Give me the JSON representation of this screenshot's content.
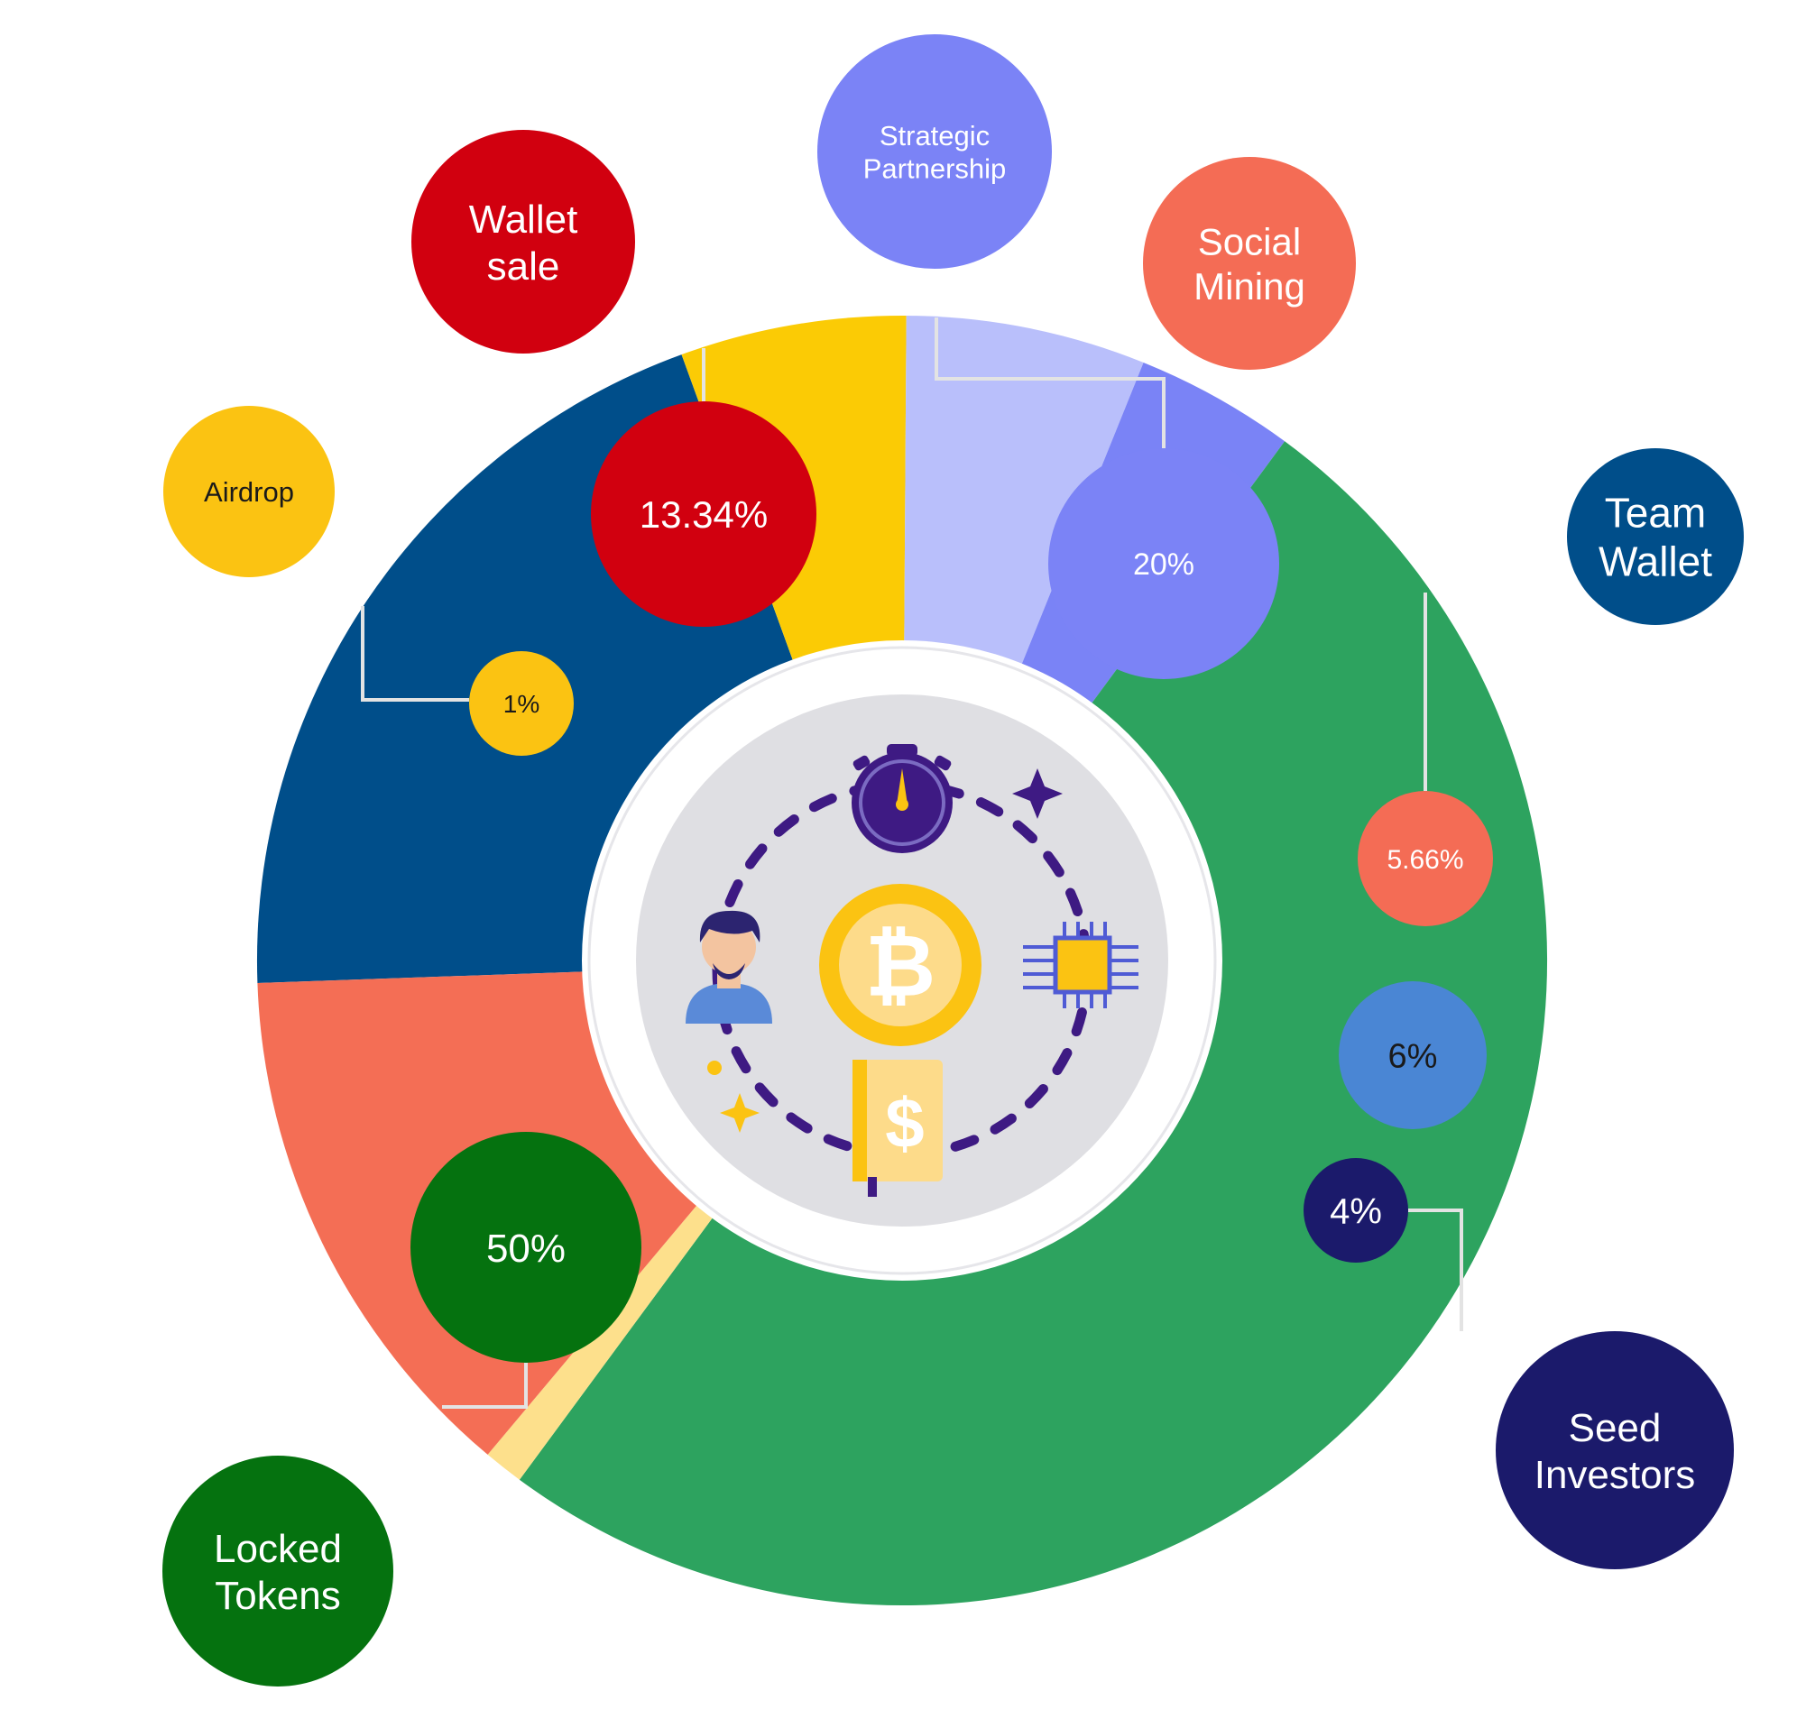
{
  "chart_data": {
    "type": "pie",
    "title": "",
    "unit": "%",
    "slices": [
      {
        "label": "Strategic Partnership",
        "value": 20,
        "value_label": "20%",
        "color": "#004e8a",
        "badge_color": "#7b83f6",
        "label_color": "#7b83f6",
        "label_text": [
          "Strategic",
          "Partnership"
        ]
      },
      {
        "label": "Social Mining",
        "value": 5.66,
        "value_label": "5.66%",
        "color": "#fbcb05",
        "badge_color": "#f46c55",
        "label_color": "#f46c55",
        "label_text": [
          "Social",
          "Mining"
        ]
      },
      {
        "label": "Team Wallet",
        "value": 6,
        "value_label": "6%",
        "color": "#b9bffb",
        "badge_color": "#4a86d4",
        "label_color": "#004e8a",
        "label_text": [
          "Team",
          "Wallet"
        ]
      },
      {
        "label": "Seed Investors",
        "value": 4,
        "value_label": "4%",
        "color": "#7a83f6",
        "badge_color": "#1b1a6b",
        "label_color": "#1b1a6b",
        "label_text": [
          "Seed",
          "Investors"
        ]
      },
      {
        "label": "Locked Tokens",
        "value": 50,
        "value_label": "50%",
        "color": "#2da35f",
        "badge_color": "#05720f",
        "label_color": "#05720f",
        "label_text": [
          "Locked",
          "Tokens"
        ]
      },
      {
        "label": "Airdrop",
        "value": 1,
        "value_label": "1%",
        "color": "#fde08c",
        "badge_color": "#fbc312",
        "label_color": "#fbc312",
        "label_text": [
          "Airdrop"
        ]
      },
      {
        "label": "Wallet sale",
        "value": 13.34,
        "value_label": "13.34%",
        "color": "#f46e55",
        "badge_color": "#d1000f",
        "label_color": "#d1000f",
        "label_text": [
          "Wallet",
          "sale"
        ]
      }
    ],
    "legend": "callout bubbles around the pie",
    "center_icons": [
      "stopwatch-icon",
      "bitcoin-coin-icon",
      "person-icon",
      "microchip-icon",
      "dollar-book-icon",
      "sparkle-icon"
    ]
  }
}
